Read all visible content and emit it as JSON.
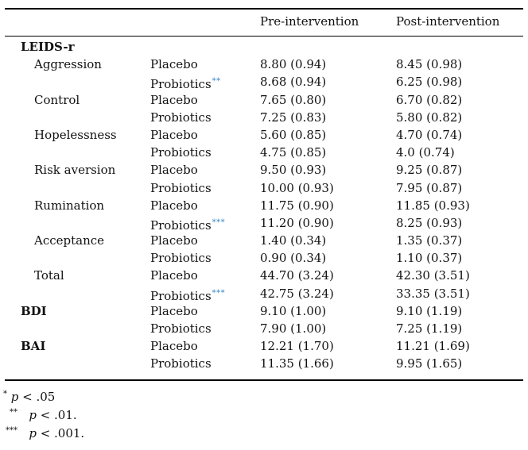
{
  "header": {
    "col_pre": "Pre-intervention",
    "col_post": "Post-intervention"
  },
  "rows": [
    {
      "section": "LEIDS-r",
      "measure": "",
      "group": "",
      "sig": "",
      "pre": "",
      "post": ""
    },
    {
      "section": "",
      "measure": "Aggression",
      "group": "Placebo",
      "sig": "",
      "pre": "8.80 (0.94)",
      "post": "8.45 (0.98)"
    },
    {
      "section": "",
      "measure": "",
      "group": "Probiotics",
      "sig": "**",
      "pre": "8.68 (0.94)",
      "post": "6.25 (0.98)"
    },
    {
      "section": "",
      "measure": "Control",
      "group": "Placebo",
      "sig": "",
      "pre": "7.65 (0.80)",
      "post": "6.70 (0.82)"
    },
    {
      "section": "",
      "measure": "",
      "group": "Probiotics",
      "sig": "",
      "pre": "7.25 (0.83)",
      "post": "5.80 (0.82)"
    },
    {
      "section": "",
      "measure": "Hopelessness",
      "group": "Placebo",
      "sig": "",
      "pre": "5.60 (0.85)",
      "post": "4.70 (0.74)"
    },
    {
      "section": "",
      "measure": "",
      "group": "Probiotics",
      "sig": "",
      "pre": "4.75 (0.85)",
      "post": "4.0 (0.74)"
    },
    {
      "section": "",
      "measure": "Risk aversion",
      "group": "Placebo",
      "sig": "",
      "pre": "9.50 (0.93)",
      "post": "9.25 (0.87)"
    },
    {
      "section": "",
      "measure": "",
      "group": "Probiotics",
      "sig": "",
      "pre": "10.00 (0.93)",
      "post": "7.95 (0.87)"
    },
    {
      "section": "",
      "measure": "Rumination",
      "group": "Placebo",
      "sig": "",
      "pre": "11.75 (0.90)",
      "post": "11.85 (0.93)"
    },
    {
      "section": "",
      "measure": "",
      "group": "Probiotics",
      "sig": "***",
      "pre": "11.20 (0.90)",
      "post": "8.25 (0.93)"
    },
    {
      "section": "",
      "measure": "Acceptance",
      "group": "Placebo",
      "sig": "",
      "pre": "1.40 (0.34)",
      "post": "1.35 (0.37)"
    },
    {
      "section": "",
      "measure": "",
      "group": "Probiotics",
      "sig": "",
      "pre": "0.90 (0.34)",
      "post": "1.10 (0.37)"
    },
    {
      "section": "",
      "measure": "Total",
      "group": "Placebo",
      "sig": "",
      "pre": "44.70 (3.24)",
      "post": "42.30 (3.51)"
    },
    {
      "section": "",
      "measure": "",
      "group": "Probiotics",
      "sig": "***",
      "pre": "42.75 (3.24)",
      "post": "33.35 (3.51)"
    },
    {
      "section": "BDI",
      "measure": "",
      "group": "Placebo",
      "sig": "",
      "pre": "9.10 (1.00)",
      "post": "9.10 (1.19)"
    },
    {
      "section": "",
      "measure": "",
      "group": "Probiotics",
      "sig": "",
      "pre": "7.90 (1.00)",
      "post": "7.25 (1.19)"
    },
    {
      "section": "BAI",
      "measure": "",
      "group": "Placebo",
      "sig": "",
      "pre": "12.21 (1.70)",
      "post": "11.21 (1.69)"
    },
    {
      "section": "",
      "measure": "",
      "group": "Probiotics",
      "sig": "",
      "pre": "11.35 (1.66)",
      "post": "9.95 (1.65)"
    }
  ],
  "footnotes": [
    {
      "mark": "*",
      "p": "p",
      "text": " < .05"
    },
    {
      "mark": "**",
      "p": "p",
      "text": " < .01."
    },
    {
      "mark": "***",
      "p": "p",
      "text": " < .001."
    }
  ]
}
